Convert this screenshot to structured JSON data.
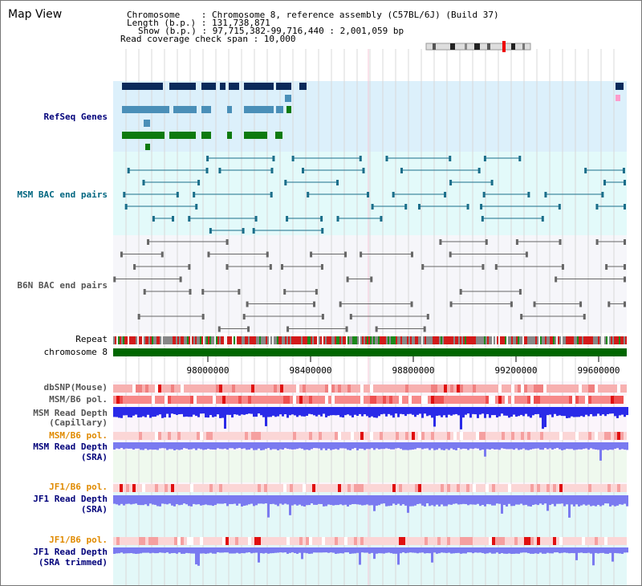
{
  "title": "Map View",
  "header": {
    "line1": "Chromosome    : Chromosome 8, reference assembly (C57BL/6J) (Build 37)",
    "line2": "Length (b.p.) : 131,738,871",
    "line3": "Show (b.p.) : 97,715,382-99,716,440 : 2,001,059 bp",
    "line4": "Read coverage check span : 10,000"
  },
  "tracks": {
    "refseq": "RefSeq Genes",
    "msm_bac": "MSM BAC end pairs",
    "b6n_bac": "B6N BAC end pairs",
    "repeat": "Repeat",
    "chromosome": "chromosome 8",
    "dbsnp": "dbSNP(Mouse)",
    "msm_b6_pol": "MSM/B6 pol.",
    "msm_depth_cap_1": "MSM Read Depth",
    "msm_depth_cap_2": "(Capillary)",
    "msm_b6_pol_2": "MSM/B6 pol.",
    "msm_depth_sra_1": "MSM Read Depth",
    "msm_depth_sra_2": "(SRA)",
    "jf1_b6_pol": "JF1/B6 pol.",
    "jf1_depth_sra_1": "JF1 Read Depth",
    "jf1_depth_sra_2": "(SRA)",
    "jf1_b6_pol_2": "JF1/B6 pol.",
    "jf1_depth_trim_1": "JF1 Read Depth",
    "jf1_depth_trim_2": "(SRA trimmed)"
  },
  "axis": {
    "ticks": [
      "98000000",
      "98400000",
      "98800000",
      "99200000",
      "99600000"
    ]
  },
  "colors": {
    "refseq_bg": "#dcf0fb",
    "msm_bg": "#e3fafa",
    "b6n_bg": "#f6f6fa",
    "gene_navy": "#0b2a5a",
    "gene_steel": "#4a8fb8",
    "gene_green": "#0e7a0e",
    "chromosome": "#006600",
    "depth_blue": "#2a2ae8",
    "depth_light": "#7a7af0"
  }
}
